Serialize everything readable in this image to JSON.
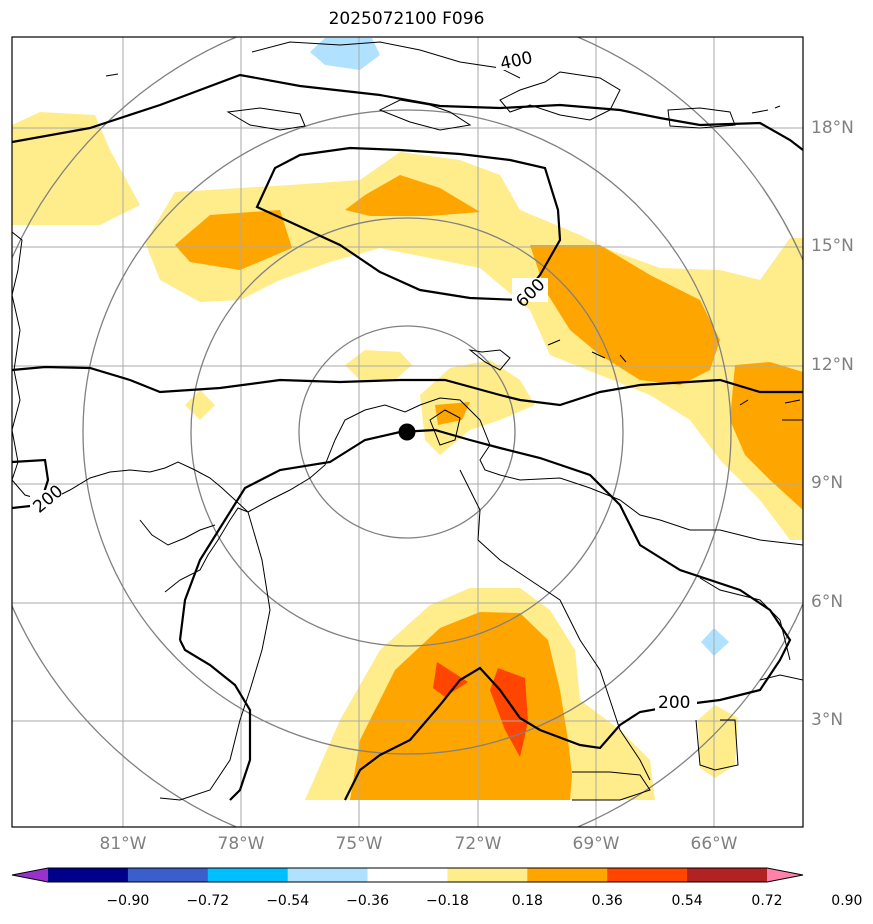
{
  "title": "2025072100 F096",
  "lat_labels": [
    "18°N",
    "15°N",
    "12°N",
    "9°N",
    "6°N",
    "3°N"
  ],
  "lon_labels": [
    "81°W",
    "78°W",
    "75°W",
    "72°W",
    "69°W",
    "66°W"
  ],
  "contour_labels": [
    "400",
    "600",
    "200",
    "200"
  ],
  "center_marker": "center-point",
  "colorbar": {
    "ticks": [
      "−0.90",
      "−0.72",
      "−0.54",
      "−0.36",
      "−0.18",
      "0.18",
      "0.36",
      "0.54",
      "0.72",
      "0.90"
    ],
    "colors": [
      "#9932cc",
      "#00008b",
      "#3a5fcd",
      "#00bfff",
      "#b0e2ff",
      "#ffffff",
      "#ffec8b",
      "#ffa500",
      "#ff4500",
      "#b22222",
      "#ff82ab"
    ]
  },
  "fill_colors": {
    "light_yellow": "#ffec8b",
    "orange": "#ffa500",
    "red_orange": "#ff4500",
    "light_blue": "#b0e2ff"
  }
}
